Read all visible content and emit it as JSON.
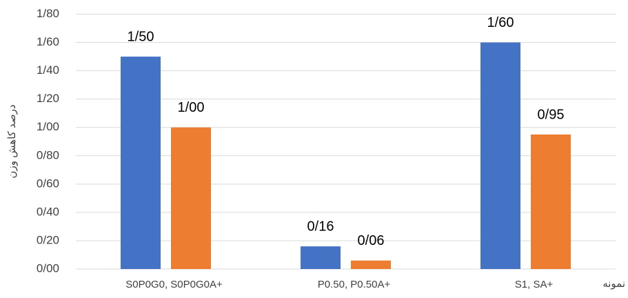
{
  "chart_data": {
    "type": "bar",
    "y_label": "درصد کاهش وزن",
    "x_label": "نمونه",
    "categories": [
      "S0P0G0, S0P0G0A+",
      "P0.50, P0.50A+",
      "S1, SA+"
    ],
    "series": [
      {
        "color": "#4472c4",
        "values": [
          1.5,
          0.16,
          1.6
        ],
        "value_labels": [
          "1/50",
          "0/16",
          "1/60"
        ]
      },
      {
        "color": "#ed7d31",
        "values": [
          1.0,
          0.06,
          0.95
        ],
        "value_labels": [
          "1/00",
          "0/06",
          "0/95"
        ]
      }
    ],
    "ylim": [
      0,
      1.8
    ],
    "yticks": [
      {
        "value": 0,
        "label": "0/00"
      },
      {
        "value": 0.2,
        "label": "0/20"
      },
      {
        "value": 0.4,
        "label": "0/40"
      },
      {
        "value": 0.6,
        "label": "0/60"
      },
      {
        "value": 0.8,
        "label": "0/80"
      },
      {
        "value": 1.0,
        "label": "1/00"
      },
      {
        "value": 1.2,
        "label": "1/20"
      },
      {
        "value": 1.4,
        "label": "1/40"
      },
      {
        "value": 1.6,
        "label": "1/60"
      },
      {
        "value": 1.8,
        "label": "1/80"
      }
    ],
    "grid": true
  }
}
